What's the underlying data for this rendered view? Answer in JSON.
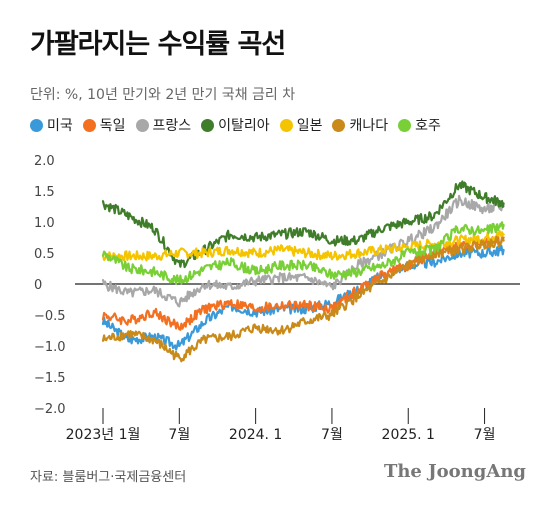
{
  "title": "가팔라지는 수익률 곡선",
  "subtitle": "단위: %, 10년 만기와 2년 만기 국채 금리 차",
  "source": "자료: 블룸버그·국제금융센터",
  "brand": "The JoongAng",
  "chart_data": {
    "type": "line",
    "ylim": [
      -2.0,
      2.0
    ],
    "yticks": [
      "2.0",
      "1.5",
      "1.0",
      "0.5",
      "0",
      "−0.5",
      "−1.0",
      "−1.5",
      "−2.0"
    ],
    "ytick_values": [
      2.0,
      1.5,
      1.0,
      0.5,
      0,
      -0.5,
      -1.0,
      -1.5,
      -2.0
    ],
    "xlim": [
      0,
      32
    ],
    "xticks": [
      {
        "label": "2023년 1월",
        "value": 0
      },
      {
        "label": "7월",
        "value": 6
      },
      {
        "label": "2024. 1",
        "value": 12
      },
      {
        "label": "7월",
        "value": 18
      },
      {
        "label": "2025. 1",
        "value": 24
      },
      {
        "label": "7월",
        "value": 30
      }
    ],
    "x": [
      0,
      2,
      4,
      6,
      8,
      10,
      12,
      14,
      16,
      18,
      20,
      22,
      24,
      26,
      28,
      30,
      31.5
    ],
    "series": [
      {
        "name": "미국",
        "color": "#3a9ad9",
        "values": [
          -0.6,
          -0.9,
          -0.85,
          -1.0,
          -0.6,
          -0.35,
          -0.45,
          -0.4,
          -0.4,
          -0.3,
          -0.1,
          0.15,
          0.3,
          0.35,
          0.5,
          0.5,
          0.55
        ]
      },
      {
        "name": "독일",
        "color": "#f37021",
        "values": [
          -0.5,
          -0.6,
          -0.45,
          -0.7,
          -0.4,
          -0.3,
          -0.4,
          -0.35,
          -0.35,
          -0.4,
          -0.1,
          0.15,
          0.3,
          0.5,
          0.6,
          0.65,
          0.75
        ]
      },
      {
        "name": "프랑스",
        "color": "#a8a8a8",
        "values": [
          0.0,
          -0.15,
          -0.1,
          -0.3,
          0.0,
          -0.05,
          0.05,
          0.1,
          0.1,
          -0.05,
          0.3,
          0.5,
          0.7,
          0.9,
          1.35,
          1.2,
          1.25
        ]
      },
      {
        "name": "이탈리아",
        "color": "#3f7d2a",
        "values": [
          1.3,
          1.1,
          0.9,
          0.3,
          0.55,
          0.8,
          0.75,
          0.8,
          0.85,
          0.7,
          0.7,
          0.9,
          1.0,
          1.1,
          1.6,
          1.4,
          1.3
        ]
      },
      {
        "name": "일본",
        "color": "#f5c400",
        "values": [
          0.45,
          0.45,
          0.45,
          0.5,
          0.5,
          0.55,
          0.5,
          0.55,
          0.5,
          0.45,
          0.5,
          0.55,
          0.6,
          0.65,
          0.7,
          0.75,
          0.8
        ]
      },
      {
        "name": "캐나다",
        "color": "#c98a1a",
        "values": [
          -0.9,
          -0.8,
          -0.9,
          -1.2,
          -0.9,
          -0.85,
          -0.7,
          -0.75,
          -0.6,
          -0.5,
          -0.2,
          0.05,
          0.3,
          0.5,
          0.55,
          0.65,
          0.7
        ]
      },
      {
        "name": "호주",
        "color": "#78cf36",
        "values": [
          0.5,
          0.25,
          0.2,
          0.05,
          0.25,
          0.35,
          0.2,
          0.3,
          0.3,
          0.15,
          0.2,
          0.3,
          0.5,
          0.55,
          0.9,
          0.85,
          0.95
        ]
      }
    ]
  }
}
